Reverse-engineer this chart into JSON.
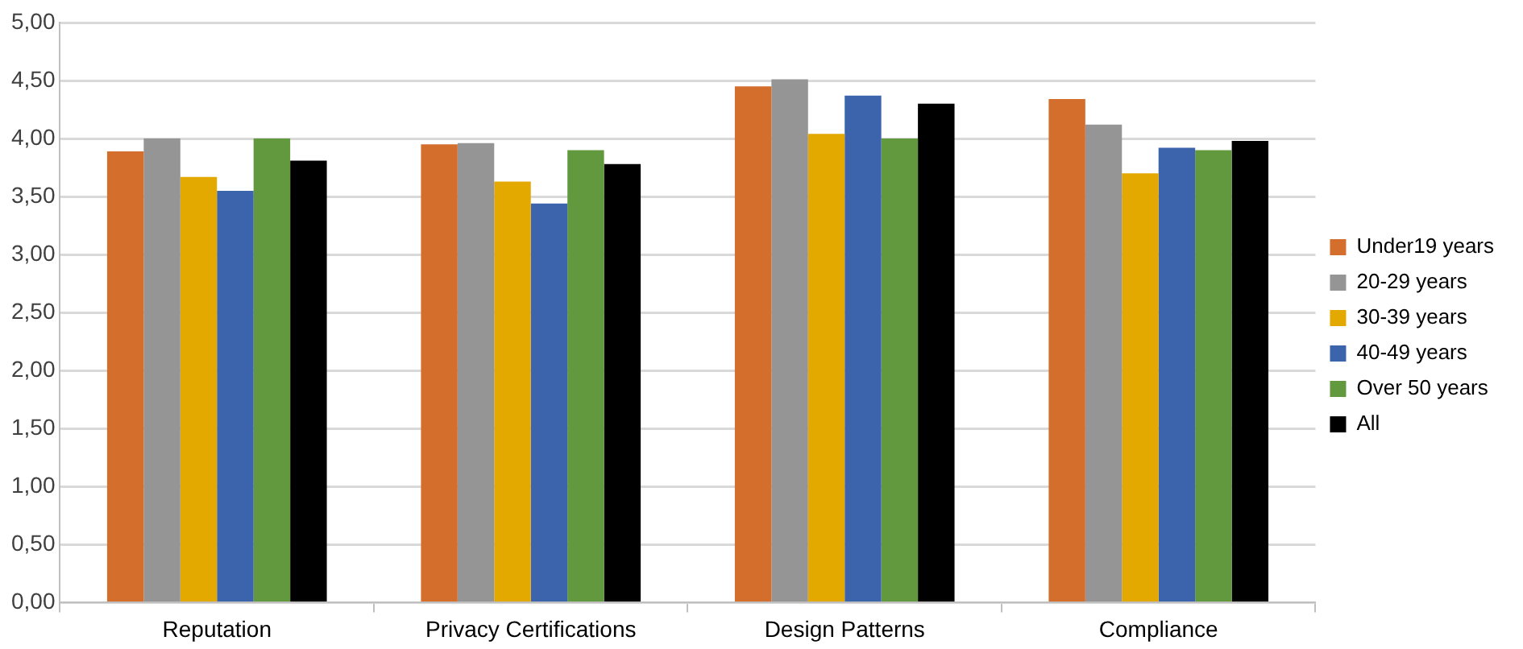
{
  "chart_data": {
    "type": "bar",
    "categories": [
      "Reputation",
      "Privacy Certifications",
      "Design Patterns",
      "Compliance"
    ],
    "series": [
      {
        "name": "Under19 years",
        "color": "#d46e2c",
        "values": [
          3.89,
          3.95,
          4.45,
          4.34
        ]
      },
      {
        "name": "20-29 years",
        "color": "#959595",
        "values": [
          4.0,
          3.96,
          4.51,
          4.12
        ]
      },
      {
        "name": "30-39 years",
        "color": "#e3a900",
        "values": [
          3.67,
          3.63,
          4.04,
          3.7
        ]
      },
      {
        "name": "40-49 years",
        "color": "#3b64ad",
        "values": [
          3.55,
          3.44,
          4.37,
          3.92
        ]
      },
      {
        "name": "Over 50 years",
        "color": "#62993e",
        "values": [
          4.0,
          3.9,
          4.0,
          3.9
        ]
      },
      {
        "name": "All",
        "color": "#000000",
        "values": [
          3.81,
          3.78,
          4.3,
          3.98
        ]
      }
    ],
    "ylim": [
      0,
      5
    ],
    "yticks": [
      {
        "value": 0,
        "label": "0,00"
      },
      {
        "value": 0.5,
        "label": "0,50"
      },
      {
        "value": 1,
        "label": "1,00"
      },
      {
        "value": 1.5,
        "label": "1,50"
      },
      {
        "value": 2,
        "label": "2,00"
      },
      {
        "value": 2.5,
        "label": "2,50"
      },
      {
        "value": 3,
        "label": "3,00"
      },
      {
        "value": 3.5,
        "label": "3,50"
      },
      {
        "value": 4,
        "label": "4,00"
      },
      {
        "value": 4.5,
        "label": "4,50"
      },
      {
        "value": 5,
        "label": "5,00"
      }
    ],
    "grid": "y",
    "legend": "right"
  }
}
